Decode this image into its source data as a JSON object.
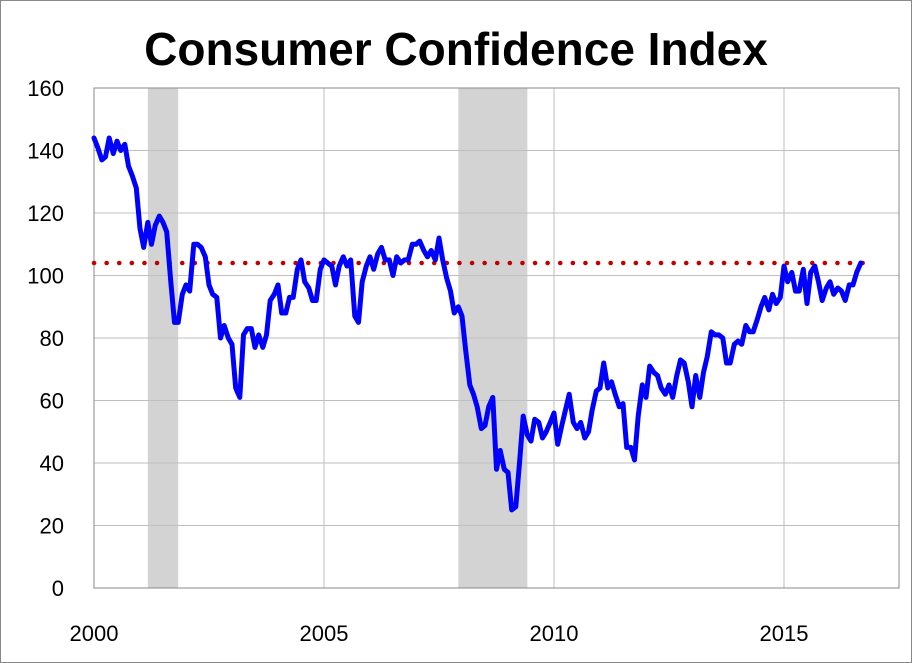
{
  "chart_data": {
    "type": "line",
    "title": "Consumer Confidence Index",
    "xlabel": "",
    "ylabel": "",
    "xlim": [
      2000,
      2017.5
    ],
    "ylim": [
      0,
      160
    ],
    "x_ticks": [
      2000,
      2005,
      2010,
      2015
    ],
    "y_ticks": [
      0,
      20,
      40,
      60,
      80,
      100,
      120,
      140,
      160
    ],
    "grid": true,
    "legend": "none",
    "colors": {
      "line": "#0000ff",
      "reference": "#c00000",
      "recession": "#d3d3d3",
      "grid": "#bfbfbf"
    },
    "recessions": [
      [
        2001.17,
        2001.83
      ],
      [
        2007.92,
        2009.42
      ]
    ],
    "reference_line": {
      "y": 104,
      "style": "dotted"
    },
    "series": [
      {
        "x": [
          2000.0,
          2000.08,
          2000.17,
          2000.25,
          2000.33,
          2000.42,
          2000.5,
          2000.58,
          2000.67,
          2000.75,
          2000.83,
          2000.92,
          2001.0,
          2001.08,
          2001.17,
          2001.25,
          2001.33,
          2001.42,
          2001.5,
          2001.58,
          2001.67,
          2001.75,
          2001.83,
          2001.92,
          2002.0,
          2002.08,
          2002.17,
          2002.25,
          2002.33,
          2002.42,
          2002.5,
          2002.58,
          2002.67,
          2002.75,
          2002.83,
          2002.92,
          2003.0,
          2003.08,
          2003.17,
          2003.25,
          2003.33,
          2003.42,
          2003.5,
          2003.58,
          2003.67,
          2003.75,
          2003.83,
          2003.92,
          2004.0,
          2004.08,
          2004.17,
          2004.25,
          2004.33,
          2004.42,
          2004.5,
          2004.58,
          2004.67,
          2004.75,
          2004.83,
          2004.92,
          2005.0,
          2005.08,
          2005.17,
          2005.25,
          2005.33,
          2005.42,
          2005.5,
          2005.58,
          2005.67,
          2005.75,
          2005.83,
          2005.92,
          2006.0,
          2006.08,
          2006.17,
          2006.25,
          2006.33,
          2006.42,
          2006.5,
          2006.58,
          2006.67,
          2006.75,
          2006.83,
          2006.92,
          2007.0,
          2007.08,
          2007.17,
          2007.25,
          2007.33,
          2007.42,
          2007.5,
          2007.58,
          2007.67,
          2007.75,
          2007.83,
          2007.92,
          2008.0,
          2008.08,
          2008.17,
          2008.25,
          2008.33,
          2008.42,
          2008.5,
          2008.58,
          2008.67,
          2008.75,
          2008.83,
          2008.92,
          2009.0,
          2009.08,
          2009.17,
          2009.25,
          2009.33,
          2009.42,
          2009.5,
          2009.58,
          2009.67,
          2009.75,
          2009.83,
          2009.92,
          2010.0,
          2010.08,
          2010.17,
          2010.25,
          2010.33,
          2010.42,
          2010.5,
          2010.58,
          2010.67,
          2010.75,
          2010.83,
          2010.92,
          2011.0,
          2011.08,
          2011.17,
          2011.25,
          2011.33,
          2011.42,
          2011.5,
          2011.58,
          2011.67,
          2011.75,
          2011.83,
          2011.92,
          2012.0,
          2012.08,
          2012.17,
          2012.25,
          2012.33,
          2012.42,
          2012.5,
          2012.58,
          2012.67,
          2012.75,
          2012.83,
          2012.92,
          2013.0,
          2013.08,
          2013.17,
          2013.25,
          2013.33,
          2013.42,
          2013.5,
          2013.58,
          2013.67,
          2013.75,
          2013.83,
          2013.92,
          2014.0,
          2014.08,
          2014.17,
          2014.25,
          2014.33,
          2014.42,
          2014.5,
          2014.58,
          2014.67,
          2014.75,
          2014.83,
          2014.92,
          2015.0,
          2015.08,
          2015.17,
          2015.25,
          2015.33,
          2015.42,
          2015.5,
          2015.58,
          2015.67,
          2015.75,
          2015.83,
          2015.92,
          2016.0,
          2016.08,
          2016.17,
          2016.25,
          2016.33,
          2016.42,
          2016.5,
          2016.58,
          2016.67
        ],
        "values": [
          144,
          141,
          137,
          138,
          144,
          139,
          143,
          140,
          142,
          135,
          132,
          128,
          115,
          109,
          117,
          110,
          116,
          119,
          117,
          114,
          98,
          85,
          85,
          94,
          97,
          95,
          110,
          110,
          109,
          106,
          97,
          94,
          93,
          80,
          84,
          80,
          78,
          64,
          61,
          81,
          83,
          83,
          77,
          81,
          77,
          81,
          92,
          94,
          97,
          88,
          88,
          93,
          93,
          102,
          105,
          98,
          96,
          92,
          92,
          102,
          105,
          104,
          103,
          97,
          103,
          106,
          103,
          105,
          87,
          85,
          98,
          103,
          106,
          102,
          107,
          109,
          105,
          105,
          100,
          106,
          104,
          105,
          105,
          110,
          110,
          111,
          108,
          106,
          108,
          105,
          112,
          105,
          99,
          95,
          88,
          90,
          87,
          76,
          65,
          62,
          58,
          51,
          52,
          58,
          61,
          38,
          44,
          38,
          37,
          25,
          26,
          40,
          55,
          49,
          47,
          54,
          53,
          48,
          50,
          53,
          56,
          46,
          52,
          57,
          62,
          53,
          51,
          53,
          48,
          50,
          57,
          63,
          64,
          72,
          64,
          66,
          62,
          58,
          59,
          45,
          45,
          41,
          55,
          65,
          61,
          71,
          69,
          68,
          64,
          62,
          65,
          61,
          68,
          73,
          72,
          66,
          58,
          68,
          61,
          69,
          74,
          82,
          81,
          81,
          80,
          72,
          72,
          78,
          79,
          78,
          84,
          82,
          82,
          86,
          90,
          93,
          89,
          94,
          91,
          93,
          103,
          98,
          101,
          95,
          95,
          102,
          91,
          101,
          103,
          98,
          92,
          96,
          98,
          94,
          96,
          95,
          92,
          97,
          97,
          101,
          104
        ]
      }
    ]
  }
}
